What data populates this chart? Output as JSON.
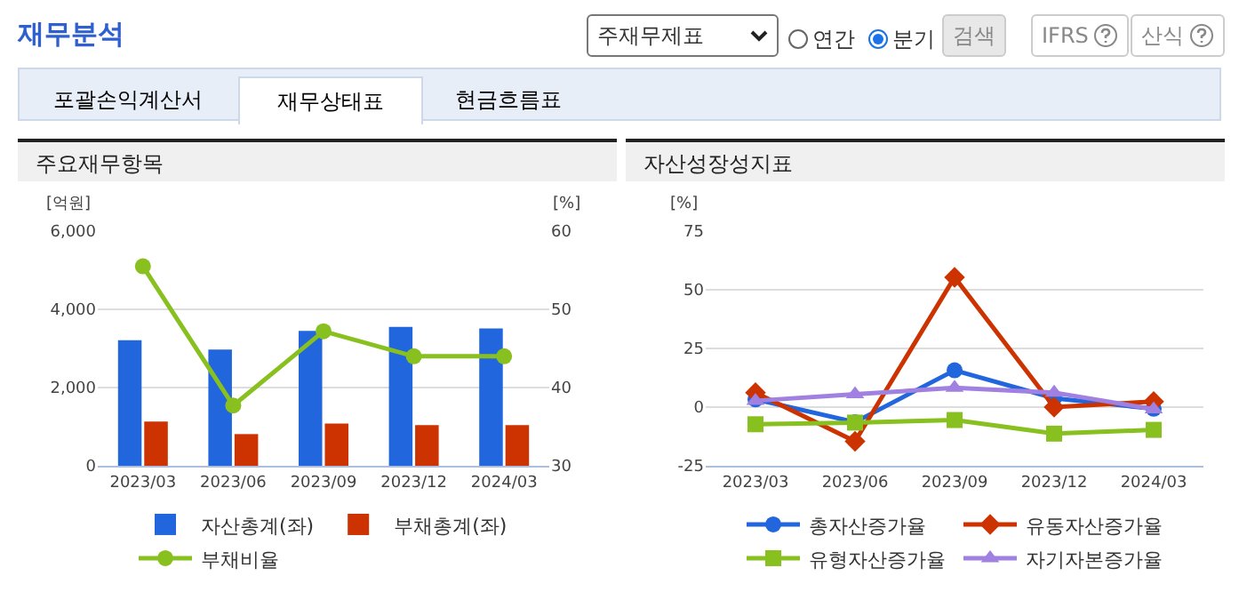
{
  "chart_data": [
    {
      "type": "other",
      "title": "재무분석",
      "annotations": [
        "주재무제표",
        "연간",
        "분기",
        "검색",
        "IFRS",
        "산식",
        "포괄손익계산서",
        "재무상태표",
        "현금흐름표"
      ]
    },
    {
      "type": "bar",
      "title": "주요재무항목",
      "ylabel": "[억원]",
      "y2label": "[%]",
      "categories": [
        "2023/03",
        "2023/06",
        "2023/09",
        "2023/12",
        "2024/03"
      ],
      "series": [
        {
          "name": "자산총계(좌)",
          "color": "#2266dd",
          "values": [
            3210,
            2970,
            3450,
            3550,
            3510
          ]
        },
        {
          "name": "부채총계(좌)",
          "color": "#cc3300",
          "values": [
            1130,
            810,
            1080,
            1040,
            1040
          ]
        },
        {
          "name": "부채비율",
          "type": "line",
          "axis": "y2",
          "color": "#88c020",
          "marker": "circle",
          "values": [
            55.5,
            37.7,
            47.2,
            44.0,
            44.0
          ]
        }
      ],
      "ylim": [
        0,
        6000
      ],
      "yticks": [
        0,
        {
          "value": 2000,
          "label": "2,000"
        },
        {
          "value": 4000,
          "label": "4,000"
        },
        {
          "value": 6000,
          "label": "6,000"
        }
      ],
      "y2lim": [
        30,
        60
      ],
      "y2ticks": [
        30,
        40,
        50,
        60
      ],
      "grid": "y",
      "legend": "bottom"
    },
    {
      "type": "line",
      "title": "자산성장성지표",
      "ylabel": "[%]",
      "categories": [
        "2023/03",
        "2023/06",
        "2023/09",
        "2023/12",
        "2024/03"
      ],
      "series": [
        {
          "name": "총자산증가율",
          "color": "#2266dd",
          "marker": "circle",
          "values": [
            3.3,
            -6.4,
            15.7,
            3.8,
            -0.7
          ]
        },
        {
          "name": "유동자산증가율",
          "color": "#cc3300",
          "marker": "diamond",
          "values": [
            6.2,
            -14.6,
            55.3,
            0,
            2.4
          ]
        },
        {
          "name": "유형자산증가율",
          "color": "#88c020",
          "marker": "square",
          "values": [
            -7.3,
            -6.6,
            -5.5,
            -11.3,
            -9.7
          ]
        },
        {
          "name": "자기자본증가율",
          "color": "#a080e0",
          "marker": "triangle",
          "values": [
            2.7,
            5.5,
            8.2,
            6.2,
            -0.9
          ]
        }
      ],
      "ylim": [
        -25,
        75
      ],
      "yticks": [
        -25,
        0,
        25,
        50,
        75
      ],
      "grid": "y",
      "legend": "bottom"
    }
  ]
}
